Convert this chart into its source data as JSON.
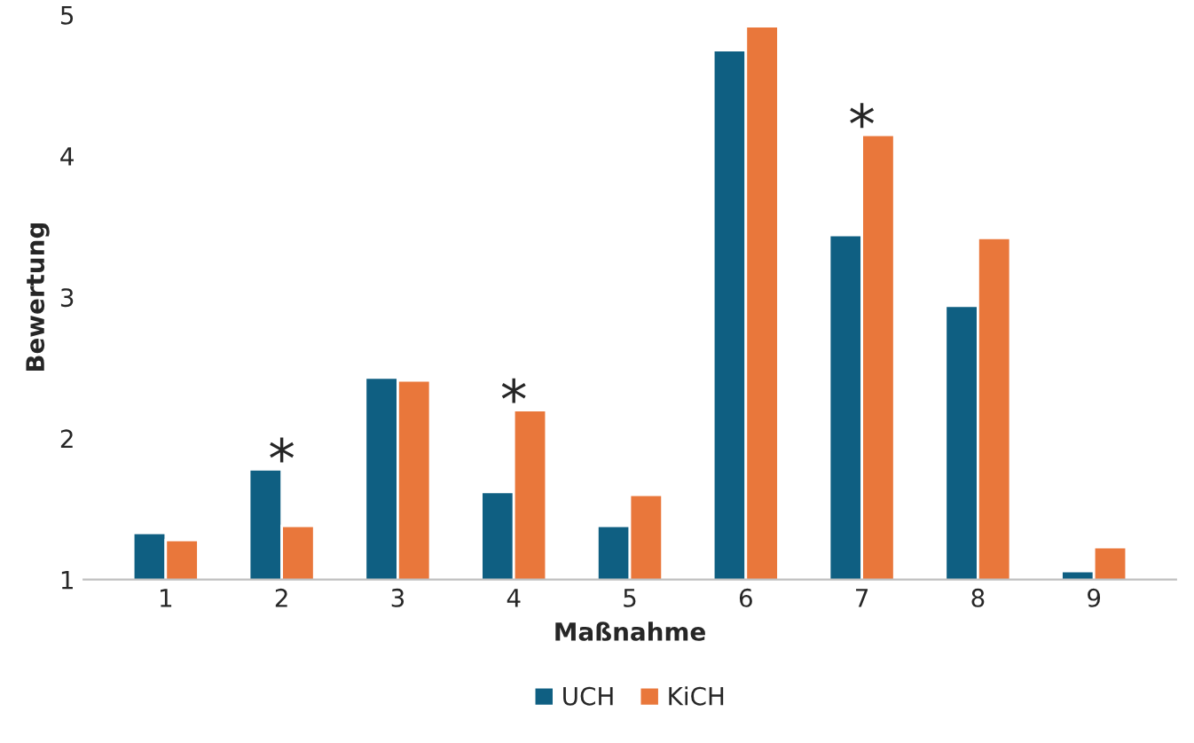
{
  "chart_data": {
    "type": "bar",
    "xlabel": "Maßnahme",
    "ylabel": "Bewertung",
    "categories": [
      "1",
      "2",
      "3",
      "4",
      "5",
      "6",
      "7",
      "8",
      "9"
    ],
    "series": [
      {
        "name": "UCH",
        "color": "#0f5f82",
        "values": [
          1.33,
          1.78,
          2.43,
          1.62,
          1.38,
          4.75,
          3.44,
          2.94,
          1.06
        ]
      },
      {
        "name": "KiCH",
        "color": "#e9773b",
        "values": [
          1.28,
          1.38,
          2.41,
          2.2,
          1.6,
          4.92,
          4.15,
          3.42,
          1.23
        ]
      }
    ],
    "ylim": [
      1,
      5
    ],
    "yticks": [
      1,
      2,
      3,
      4,
      5
    ],
    "grid": false,
    "legend": "bottom",
    "annotations": [
      {
        "text": "*",
        "x": "2",
        "y": 1.78
      },
      {
        "text": "*",
        "x": "4",
        "y": 2.2
      },
      {
        "text": "*",
        "x": "7",
        "y": 4.15
      }
    ]
  }
}
